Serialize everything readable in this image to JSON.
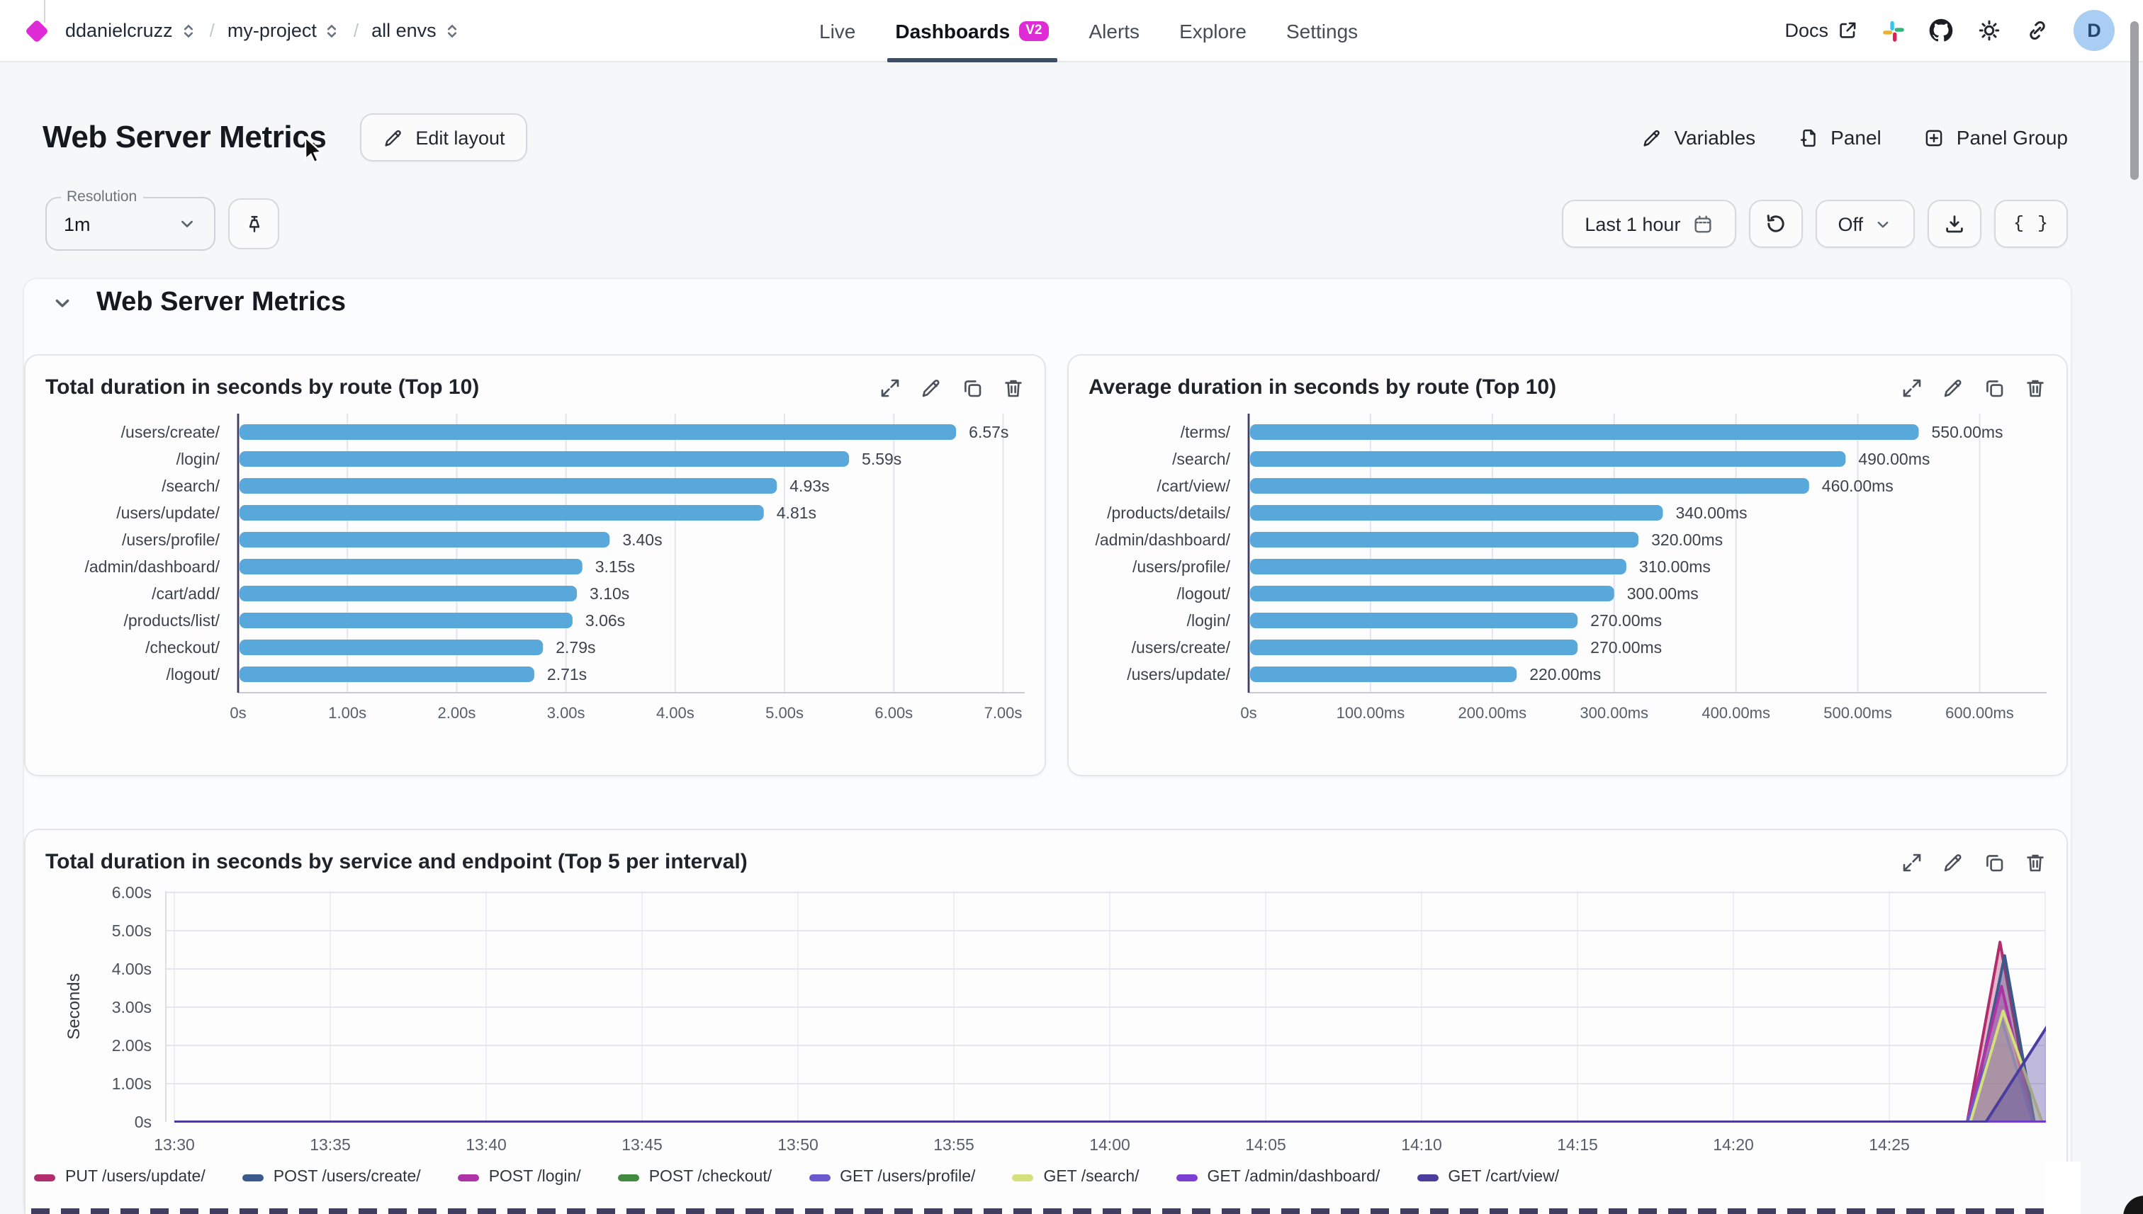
{
  "nav": {
    "breadcrumbs": [
      "ddanielcruzz",
      "my-project",
      "all envs"
    ],
    "separator": "/",
    "tabs": [
      {
        "label": "Live",
        "active": false
      },
      {
        "label": "Dashboards",
        "active": true,
        "badge": "V2"
      },
      {
        "label": "Alerts",
        "active": false
      },
      {
        "label": "Explore",
        "active": false
      },
      {
        "label": "Settings",
        "active": false
      }
    ],
    "docs_label": "Docs",
    "avatar_initial": "D"
  },
  "page": {
    "title": "Web Server Metrics",
    "edit_layout": "Edit layout",
    "variables": "Variables",
    "panel": "Panel",
    "panel_group": "Panel Group",
    "resolution_label": "Resolution",
    "resolution_value": "1m",
    "time_range": "Last 1 hour",
    "refresh_state": "Off",
    "code_button": "{ }",
    "section_title": "Web Server Metrics"
  },
  "colors": {
    "brand": "#de2bd5",
    "bar_blue": "#58a8dc",
    "tab_underline": "#3e4e63",
    "avatar_bg": "#a9cdf3"
  },
  "chart_data": [
    {
      "type": "bar",
      "orientation": "horizontal",
      "title": "Total duration in seconds by route (Top 10)",
      "categories": [
        "/users/create/",
        "/login/",
        "/search/",
        "/users/update/",
        "/users/profile/",
        "/admin/dashboard/",
        "/cart/add/",
        "/products/list/",
        "/checkout/",
        "/logout/"
      ],
      "values": [
        6.57,
        5.59,
        4.93,
        4.81,
        3.4,
        3.15,
        3.1,
        3.06,
        2.79,
        2.71
      ],
      "value_labels": [
        "6.57s",
        "5.59s",
        "4.93s",
        "4.81s",
        "3.40s",
        "3.15s",
        "3.10s",
        "3.06s",
        "2.79s",
        "2.71s"
      ],
      "x_ticks": [
        {
          "v": 0,
          "label": "0s"
        },
        {
          "v": 1,
          "label": "1.00s"
        },
        {
          "v": 2,
          "label": "2.00s"
        },
        {
          "v": 3,
          "label": "3.00s"
        },
        {
          "v": 4,
          "label": "4.00s"
        },
        {
          "v": 5,
          "label": "5.00s"
        },
        {
          "v": 6,
          "label": "6.00s"
        },
        {
          "v": 7,
          "label": "7.00s"
        }
      ],
      "xlim": [
        0,
        7.12
      ],
      "bar_color": "#58a8dc",
      "layout": {
        "axis_x": 136
      }
    },
    {
      "type": "bar",
      "orientation": "horizontal",
      "title": "Average duration in seconds by route (Top 10)",
      "categories": [
        "/terms/",
        "/search/",
        "/cart/view/",
        "/products/details/",
        "/admin/dashboard/",
        "/users/profile/",
        "/logout/",
        "/login/",
        "/users/create/",
        "/users/update/"
      ],
      "values": [
        550,
        490,
        460,
        340,
        320,
        310,
        300,
        270,
        270,
        220
      ],
      "value_labels": [
        "550.00ms",
        "490.00ms",
        "460.00ms",
        "340.00ms",
        "320.00ms",
        "310.00ms",
        "300.00ms",
        "270.00ms",
        "270.00ms",
        "220.00ms"
      ],
      "x_ticks": [
        {
          "v": 0,
          "label": "0s"
        },
        {
          "v": 100,
          "label": "100.00ms"
        },
        {
          "v": 200,
          "label": "200.00ms"
        },
        {
          "v": 300,
          "label": "300.00ms"
        },
        {
          "v": 400,
          "label": "400.00ms"
        },
        {
          "v": 500,
          "label": "500.00ms"
        },
        {
          "v": 600,
          "label": "600.00ms"
        }
      ],
      "xlim": [
        0,
        648
      ],
      "bar_color": "#58a8dc",
      "layout": {
        "axis_x": 113
      }
    },
    {
      "type": "area",
      "title": "Total duration in seconds by service and endpoint (Top 5 per interval)",
      "ylabel": "Seconds",
      "ylim": [
        0,
        6
      ],
      "y_ticks": [
        {
          "v": 0,
          "label": "0s"
        },
        {
          "v": 1,
          "label": "1.00s"
        },
        {
          "v": 2,
          "label": "2.00s"
        },
        {
          "v": 3,
          "label": "3.00s"
        },
        {
          "v": 4,
          "label": "4.00s"
        },
        {
          "v": 5,
          "label": "5.00s"
        },
        {
          "v": 6,
          "label": "6.00s"
        }
      ],
      "x_ticks": [
        {
          "t": 0,
          "label": "13:30"
        },
        {
          "t": 5,
          "label": "13:35"
        },
        {
          "t": 10,
          "label": "13:40"
        },
        {
          "t": 15,
          "label": "13:45"
        },
        {
          "t": 20,
          "label": "13:50"
        },
        {
          "t": 25,
          "label": "13:55"
        },
        {
          "t": 30,
          "label": "14:00"
        },
        {
          "t": 35,
          "label": "14:05"
        },
        {
          "t": 40,
          "label": "14:10"
        },
        {
          "t": 45,
          "label": "14:15"
        },
        {
          "t": 50,
          "label": "14:20"
        },
        {
          "t": 55,
          "label": "14:25"
        }
      ],
      "series": [
        {
          "name": "PUT /users/update/",
          "color": "#b12d6b",
          "points": [
            [
              0,
              0
            ],
            [
              57.5,
              0
            ],
            [
              58.55,
              4.7
            ],
            [
              59.6,
              0
            ],
            [
              60.8,
              0
            ]
          ]
        },
        {
          "name": "POST /users/create/",
          "color": "#3a5a8c",
          "points": [
            [
              0,
              0
            ],
            [
              57.6,
              0
            ],
            [
              58.7,
              4.35
            ],
            [
              59.65,
              0
            ],
            [
              60.8,
              0
            ]
          ]
        },
        {
          "name": "POST /login/",
          "color": "#ad33a6",
          "points": [
            [
              0,
              0
            ],
            [
              57.5,
              0
            ],
            [
              58.6,
              3.55
            ],
            [
              59.6,
              0
            ],
            [
              60.8,
              0
            ]
          ]
        },
        {
          "name": "POST /checkout/",
          "color": "#418a3f",
          "points": [
            [
              0,
              0
            ],
            [
              60.8,
              0
            ]
          ]
        },
        {
          "name": "GET /users/profile/",
          "color": "#6a5acd",
          "points": [
            [
              0,
              0
            ],
            [
              57.5,
              0
            ],
            [
              58.6,
              2.7
            ],
            [
              59.6,
              0
            ],
            [
              60.8,
              0
            ]
          ]
        },
        {
          "name": "GET /search/",
          "color": "#d3e07c",
          "points": [
            [
              0,
              0
            ],
            [
              57.6,
              0
            ],
            [
              58.65,
              2.9
            ],
            [
              59.9,
              0
            ],
            [
              60.8,
              0
            ]
          ]
        },
        {
          "name": "GET /admin/dashboard/",
          "color": "#7b3fd4",
          "points": [
            [
              0,
              0
            ],
            [
              60.8,
              0
            ]
          ]
        },
        {
          "name": "GET /cart/view/",
          "color": "#4b3d9e",
          "points": [
            [
              0,
              0
            ],
            [
              58.1,
              0
            ],
            [
              60.1,
              2.55
            ],
            [
              60.8,
              0
            ]
          ]
        }
      ]
    }
  ]
}
